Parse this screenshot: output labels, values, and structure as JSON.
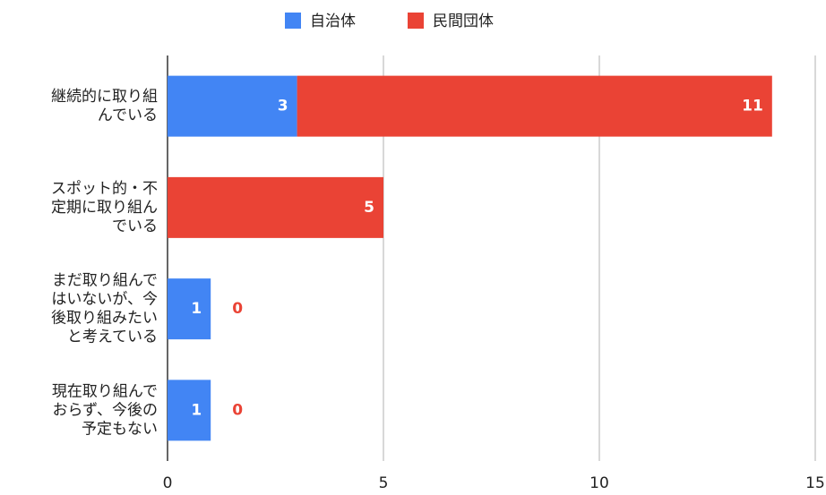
{
  "chart_data": {
    "type": "stacked_barh",
    "categories": [
      "継続的に取り組んでいる",
      "スポット的・不定期に取り組んでいる",
      "まだ取り組んではいないが、今後取り組みたいと考えている",
      "現在取り組んでおらず、今後の予定もない"
    ],
    "series": [
      {
        "name": "自治体",
        "color": "#4285f4",
        "values": [
          3,
          0,
          1,
          1
        ]
      },
      {
        "name": "民間団体",
        "color": "#ea4335",
        "values": [
          11,
          5,
          0,
          0
        ]
      }
    ],
    "xlim": [
      0,
      15
    ],
    "xticks": [
      0,
      5,
      10,
      15
    ],
    "grid": true,
    "legend": "top"
  }
}
